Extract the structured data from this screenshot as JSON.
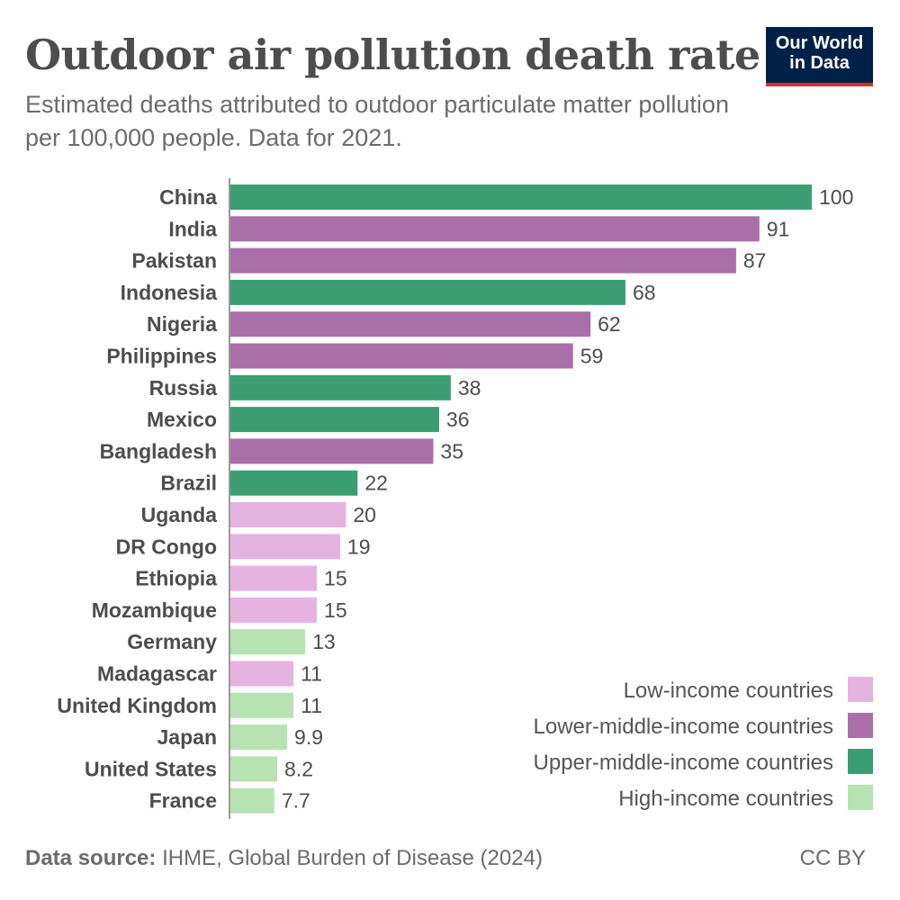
{
  "header": {
    "title": "Outdoor air pollution death rate",
    "subtitle": "Estimated deaths attributed to outdoor particulate matter pollution per 100,000 people. Data for 2021.",
    "logo_line1": "Our World",
    "logo_line2": "in Data"
  },
  "footer": {
    "source_label": "Data source:",
    "source_text": "IHME, Global Burden of Disease (2024)",
    "license": "CC BY"
  },
  "chart_data": {
    "type": "bar",
    "orientation": "horizontal",
    "categories": [
      "China",
      "India",
      "Pakistan",
      "Indonesia",
      "Nigeria",
      "Philippines",
      "Russia",
      "Mexico",
      "Bangladesh",
      "Brazil",
      "Uganda",
      "DR Congo",
      "Ethiopia",
      "Mozambique",
      "Germany",
      "Madagascar",
      "United Kingdom",
      "Japan",
      "United States",
      "France"
    ],
    "values": [
      100,
      91,
      87,
      68,
      62,
      59,
      38,
      36,
      35,
      22,
      20,
      19,
      15,
      15,
      13,
      11,
      11,
      9.9,
      8.2,
      7.7
    ],
    "value_labels": [
      "100",
      "91",
      "87",
      "68",
      "62",
      "59",
      "38",
      "36",
      "35",
      "22",
      "20",
      "19",
      "15",
      "15",
      "13",
      "11",
      "11",
      "9.9",
      "8.2",
      "7.7"
    ],
    "groups": [
      "upper-middle",
      "lower-middle",
      "lower-middle",
      "upper-middle",
      "lower-middle",
      "lower-middle",
      "upper-middle",
      "upper-middle",
      "lower-middle",
      "upper-middle",
      "low",
      "low",
      "low",
      "low",
      "high",
      "low",
      "high",
      "high",
      "high",
      "high"
    ],
    "legend": [
      {
        "key": "low",
        "label": "Low-income countries",
        "color": "#e6b3e0"
      },
      {
        "key": "lower-middle",
        "label": "Lower-middle-income countries",
        "color": "#a96fa9"
      },
      {
        "key": "upper-middle",
        "label": "Upper-middle-income countries",
        "color": "#3b9e73"
      },
      {
        "key": "high",
        "label": "High-income countries",
        "color": "#b7e3b3"
      }
    ],
    "legend_position": "bottom-right",
    "xlim": [
      0,
      100
    ],
    "grid": false
  }
}
